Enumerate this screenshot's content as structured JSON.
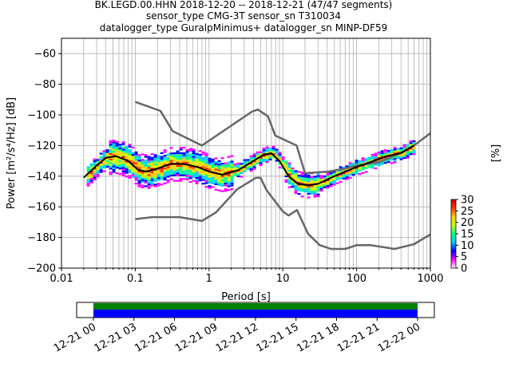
{
  "title_lines": [
    "BK.LEGD.00.HHN   2018-12-20 -- 2018-12-21  (47/47 segments)",
    "sensor_type CMG-3T sensor_sn T310034",
    "datalogger_type GuralpMinimus+ datalogger_sn MINP-DF59"
  ],
  "chart_data": {
    "type": "heatmap",
    "xlabel": "Period [s]",
    "ylabel": "Power [m²/s⁴/Hz] [dB]",
    "xscale": "log",
    "xlim": [
      0.01,
      1000
    ],
    "ylim": [
      -200,
      -50
    ],
    "xticks": [
      {
        "value": 0.01,
        "label": "0.01"
      },
      {
        "value": 0.1,
        "label": "0.1"
      },
      {
        "value": 1,
        "label": "1"
      },
      {
        "value": 10,
        "label": "10"
      },
      {
        "value": 100,
        "label": "100"
      },
      {
        "value": 1000,
        "label": "1000"
      }
    ],
    "yticks": [
      {
        "value": -60,
        "label": "−60"
      },
      {
        "value": -80,
        "label": "−80"
      },
      {
        "value": -100,
        "label": "−100"
      },
      {
        "value": -120,
        "label": "−120"
      },
      {
        "value": -140,
        "label": "−140"
      },
      {
        "value": -160,
        "label": "−160"
      },
      {
        "value": -180,
        "label": "−180"
      },
      {
        "value": -200,
        "label": "−200"
      }
    ],
    "grid": true,
    "colorbar": {
      "label": "[%]",
      "range": [
        0,
        30
      ],
      "ticks": [
        {
          "value": 0,
          "label": "0"
        },
        {
          "value": 5,
          "label": "5"
        },
        {
          "value": 10,
          "label": "10"
        },
        {
          "value": 15,
          "label": "15"
        },
        {
          "value": 20,
          "label": "20"
        },
        {
          "value": 25,
          "label": "25"
        },
        {
          "value": 30,
          "label": "30"
        }
      ],
      "colors": [
        "#ffffff",
        "#ff00ff",
        "#0000ff",
        "#00ccff",
        "#00ff88",
        "#c8ff00",
        "#ffcc00",
        "#ff3300",
        "#cc0000"
      ]
    },
    "series": [
      {
        "style": "nlnm",
        "color": "#666666",
        "points": [
          [
            0.1,
            -168
          ],
          [
            0.17,
            -166.7
          ],
          [
            0.4,
            -166.7
          ],
          [
            0.8,
            -169.2
          ],
          [
            1.24,
            -163.7
          ],
          [
            2.4,
            -148.6
          ],
          [
            4.3,
            -141.1
          ],
          [
            5.0,
            -141.1
          ],
          [
            6.0,
            -149
          ],
          [
            10,
            -163
          ],
          [
            12,
            -165.7
          ],
          [
            15.6,
            -162.1
          ],
          [
            21.9,
            -177.5
          ],
          [
            31.6,
            -185
          ],
          [
            45,
            -187.5
          ],
          [
            70,
            -187.5
          ],
          [
            101,
            -185
          ],
          [
            154,
            -185
          ],
          [
            328,
            -187.5
          ],
          [
            600,
            -184.4
          ],
          [
            1000,
            -178
          ]
        ]
      },
      {
        "style": "nhnm",
        "color": "#666666",
        "points": [
          [
            0.1,
            -91.5
          ],
          [
            0.22,
            -97.4
          ],
          [
            0.32,
            -110.5
          ],
          [
            0.8,
            -120
          ],
          [
            3.8,
            -97.9
          ],
          [
            4.6,
            -96.5
          ],
          [
            6.3,
            -101
          ],
          [
            7.9,
            -113.5
          ],
          [
            15.4,
            -120
          ],
          [
            20,
            -138
          ],
          [
            42,
            -137
          ],
          [
            70,
            -135
          ],
          [
            100,
            -133
          ],
          [
            200,
            -131
          ],
          [
            354,
            -126
          ],
          [
            600,
            -120
          ],
          [
            1000,
            -112
          ]
        ]
      },
      {
        "style": "mode",
        "color": "#000000",
        "points": [
          [
            0.02,
            -141
          ],
          [
            0.03,
            -133
          ],
          [
            0.04,
            -128
          ],
          [
            0.055,
            -127
          ],
          [
            0.08,
            -130
          ],
          [
            0.11,
            -136
          ],
          [
            0.14,
            -137
          ],
          [
            0.2,
            -135
          ],
          [
            0.3,
            -132
          ],
          [
            0.45,
            -132
          ],
          [
            0.7,
            -134
          ],
          [
            1.0,
            -137
          ],
          [
            1.5,
            -139
          ],
          [
            2.5,
            -136
          ],
          [
            4.0,
            -130
          ],
          [
            5.5,
            -126
          ],
          [
            7.0,
            -125
          ],
          [
            9.0,
            -130
          ],
          [
            12,
            -140
          ],
          [
            16,
            -145
          ],
          [
            22,
            -146
          ],
          [
            30,
            -145
          ],
          [
            50,
            -140
          ],
          [
            70,
            -137
          ],
          [
            100,
            -134
          ],
          [
            150,
            -131
          ],
          [
            250,
            -127
          ],
          [
            400,
            -125
          ],
          [
            600,
            -120
          ]
        ]
      }
    ]
  },
  "timeline": {
    "tick_labels": [
      "12-21 00",
      "12-21 03",
      "12-21 06",
      "12-21 09",
      "12-21 12",
      "12-21 15",
      "12-21 18",
      "12-21 21",
      "12-22 00"
    ],
    "bar_colors": {
      "top": "#008000",
      "bottom": "#0000ff"
    },
    "coverage_start": "12-21 00",
    "coverage_end": "12-22 00"
  }
}
